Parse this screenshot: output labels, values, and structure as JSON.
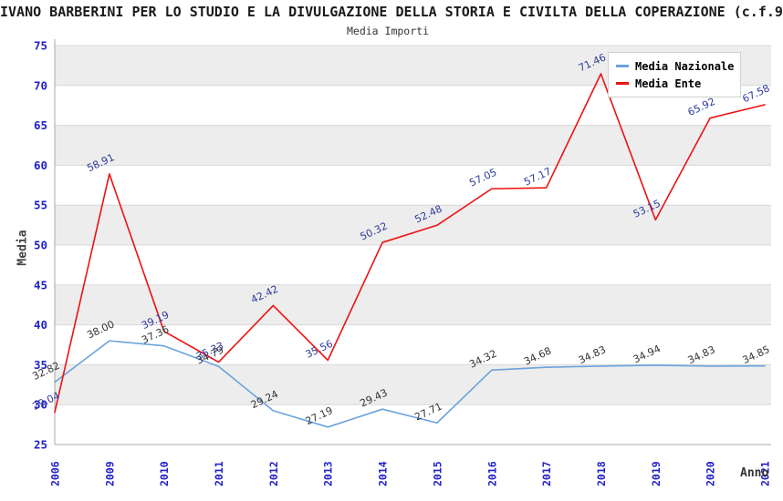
{
  "header": {
    "title": "IVANO BARBERINI PER LO STUDIO E LA DIVULGAZIONE DELLA STORIA E CIVILTA DELLA COPERAZIONE (c.f.9",
    "subtitle": "Media Importi"
  },
  "chart_data": {
    "type": "line",
    "title": "IVANO BARBERINI PER LO STUDIO E LA DIVULGAZIONE DELLA STORIA E CIVILTA DELLA COPERAZIONE (c.f.9",
    "subtitle": "Media Importi",
    "xlabel": "Anno",
    "ylabel": "Media",
    "categories": [
      "2006",
      "2009",
      "2010",
      "2011",
      "2012",
      "2013",
      "2014",
      "2015",
      "2016",
      "2017",
      "2018",
      "2019",
      "2020",
      "2021"
    ],
    "series": [
      {
        "name": "Media Nazionale",
        "color": "#6ba3dc",
        "label_color": "#333333",
        "values": [
          32.82,
          38.0,
          37.36,
          34.79,
          29.24,
          27.19,
          29.43,
          27.71,
          34.32,
          34.68,
          34.83,
          34.94,
          34.83,
          34.85
        ]
      },
      {
        "name": "Media Ente",
        "color": "#ee1111",
        "label_color": "#2d3a9c",
        "values": [
          29.04,
          58.91,
          39.19,
          35.33,
          42.42,
          35.56,
          50.32,
          52.48,
          57.05,
          57.17,
          71.46,
          53.15,
          65.92,
          67.58
        ]
      }
    ],
    "ylim": [
      25,
      75
    ],
    "ytick_step": 5,
    "yticks": [
      25,
      30,
      35,
      40,
      45,
      50,
      55,
      60,
      65,
      70,
      75
    ],
    "grid": true,
    "band_colors": [
      "#ffffff",
      "#ededed"
    ],
    "grid_color": "#d8d8d8",
    "axis_line_color": "#a8a8a8",
    "tick_label_color": "#2121c8",
    "data_label_rotation": -25,
    "legend_position": "top-right"
  }
}
